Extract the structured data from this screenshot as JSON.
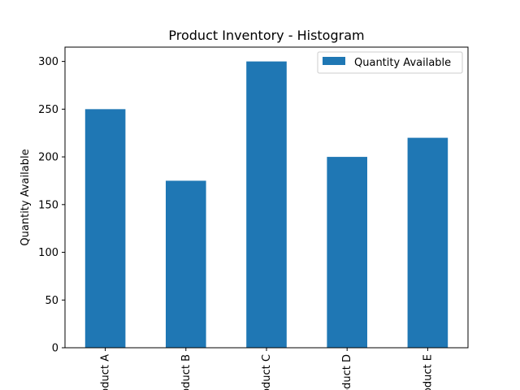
{
  "chart_data": {
    "type": "bar",
    "title": "Product Inventory - Histogram",
    "xlabel": "",
    "ylabel": "Quantity Available",
    "categories": [
      "Product A",
      "Product B",
      "Product C",
      "Product D",
      "Product E"
    ],
    "series": [
      {
        "name": "Quantity Available",
        "values": [
          250,
          175,
          300,
          200,
          220
        ],
        "color": "#1f77b4"
      }
    ],
    "ylim": [
      0,
      315
    ],
    "yticks": [
      0,
      50,
      100,
      150,
      200,
      250,
      300
    ],
    "legend": {
      "position": "top-right"
    },
    "grid": false
  }
}
